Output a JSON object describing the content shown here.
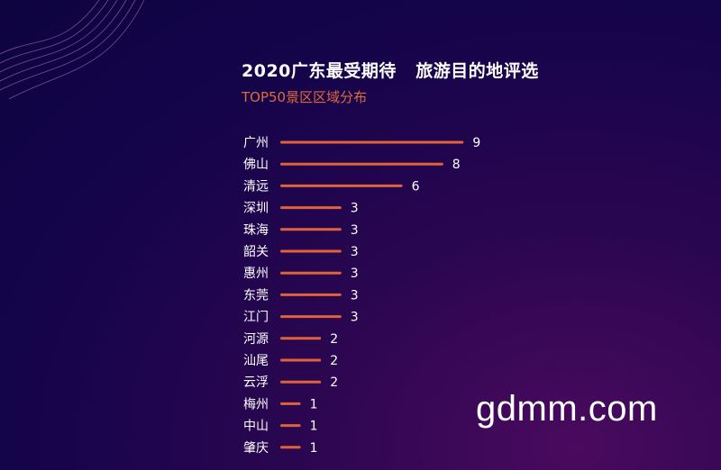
{
  "header": {
    "title": "2020广东最受期待   旅游目的地评选",
    "subtitle": "TOP50景区区域分布"
  },
  "watermark": "gdmm.com",
  "colors": {
    "bar": "#e0623a",
    "label": "#ffffff",
    "subtitle": "#e06a3c"
  },
  "chart_data": {
    "type": "bar",
    "orientation": "horizontal",
    "title": "2020广东最受期待   旅游目的地评选",
    "subtitle": "TOP50景区区域分布",
    "categories": [
      "广州",
      "佛山",
      "清远",
      "深圳",
      "珠海",
      "韶关",
      "惠州",
      "东莞",
      "江门",
      "河源",
      "汕尾",
      "云浮",
      "梅州",
      "中山",
      "肇庆"
    ],
    "values": [
      9,
      8,
      6,
      3,
      3,
      3,
      3,
      3,
      3,
      2,
      2,
      2,
      1,
      1,
      1
    ],
    "xlim": [
      0,
      9
    ],
    "grid": false,
    "legend": "none"
  }
}
